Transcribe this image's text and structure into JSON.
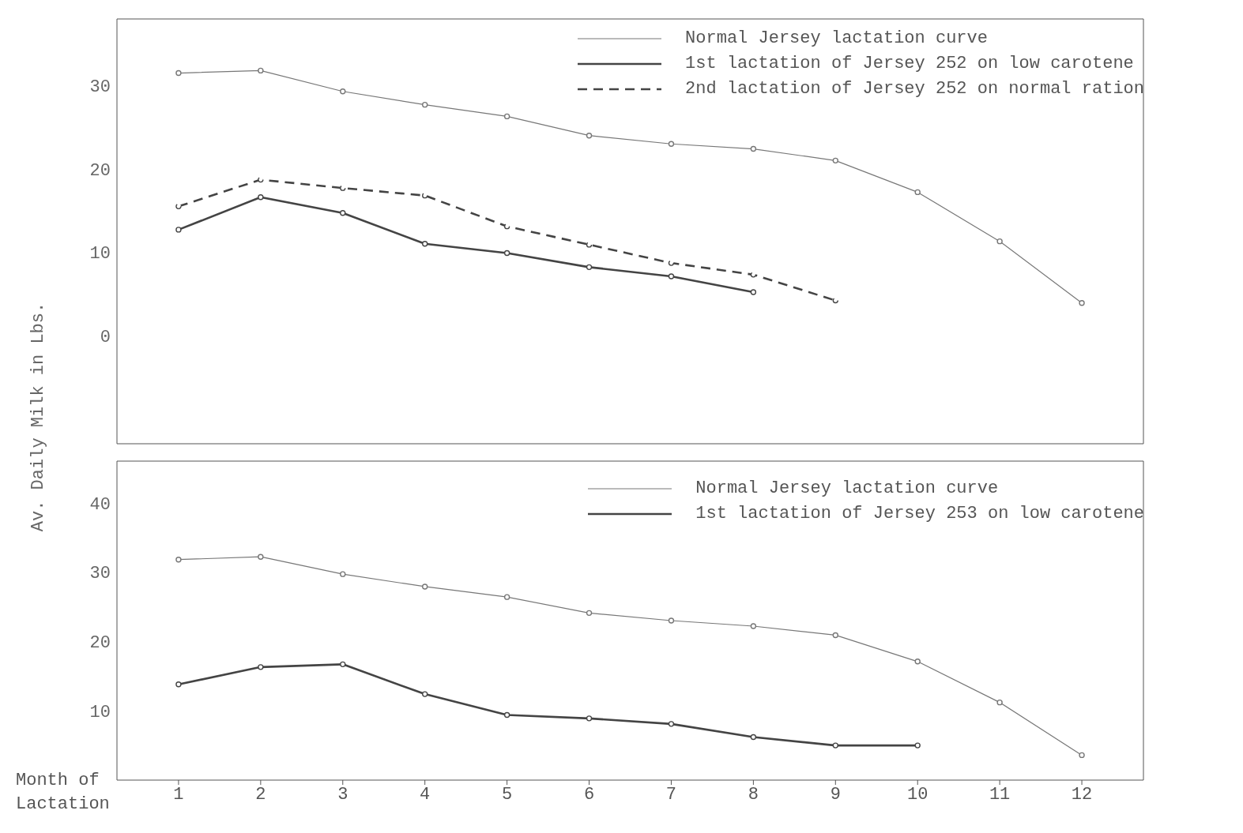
{
  "chart_data": [
    {
      "type": "line",
      "ylabel": "Av. Daily Milk in Lbs.",
      "x": [
        1,
        2,
        3,
        4,
        5,
        6,
        7,
        8,
        9,
        10,
        11,
        12
      ],
      "xlim": [
        0.25,
        12.75
      ],
      "xticks": [
        1,
        2,
        3,
        4,
        5,
        6,
        7,
        8,
        9,
        10,
        11,
        12
      ],
      "ylim": [
        -13,
        38
      ],
      "yticks": [
        0,
        10,
        20,
        30
      ],
      "tick_labels": "y",
      "grid": false,
      "legend": "top right",
      "marker": "circle",
      "series": [
        {
          "name": "Normal Jersey lactation curve",
          "color": "#777777",
          "line_style": "solid",
          "values": [
            31.5,
            31.8,
            29.3,
            27.7,
            26.3,
            24.0,
            23.0,
            22.4,
            21.0,
            17.2,
            11.3,
            3.9
          ]
        },
        {
          "name": "1st lactation of Jersey 252 on low carotene",
          "color": "#444444",
          "line_style": "solid",
          "values": [
            12.7,
            16.6,
            14.7,
            11.0,
            9.9,
            8.2,
            7.1,
            5.2,
            null,
            null,
            null,
            null
          ]
        },
        {
          "name": "2nd lactation of Jersey 252 on normal ration",
          "color": "#444444",
          "line_style": "dashed",
          "values": [
            15.5,
            18.7,
            17.7,
            16.8,
            13.1,
            10.9,
            8.7,
            7.3,
            4.2,
            null,
            null,
            null
          ]
        }
      ]
    },
    {
      "type": "line",
      "xlabel": "Month of Lactation",
      "x": [
        1,
        2,
        3,
        4,
        5,
        6,
        7,
        8,
        9,
        10,
        11,
        12
      ],
      "xlim": [
        0.25,
        12.75
      ],
      "xticks": [
        1,
        2,
        3,
        4,
        5,
        6,
        7,
        8,
        9,
        10,
        11,
        12
      ],
      "ylim": [
        0,
        46
      ],
      "yticks": [
        10,
        20,
        30,
        40
      ],
      "grid": false,
      "legend": "top right",
      "marker": "circle",
      "series": [
        {
          "name": "Normal Jersey lactation curve",
          "color": "#777777",
          "line_style": "solid",
          "values": [
            31.8,
            32.2,
            29.7,
            27.9,
            26.4,
            24.1,
            23.0,
            22.2,
            20.9,
            17.1,
            11.2,
            3.6
          ]
        },
        {
          "name": "1st lactation of Jersey 253 on low carotene",
          "color": "#444444",
          "line_style": "solid",
          "values": [
            13.8,
            16.3,
            16.7,
            12.4,
            9.4,
            8.9,
            8.1,
            6.2,
            5.0,
            5.0,
            null,
            null
          ]
        }
      ]
    }
  ]
}
